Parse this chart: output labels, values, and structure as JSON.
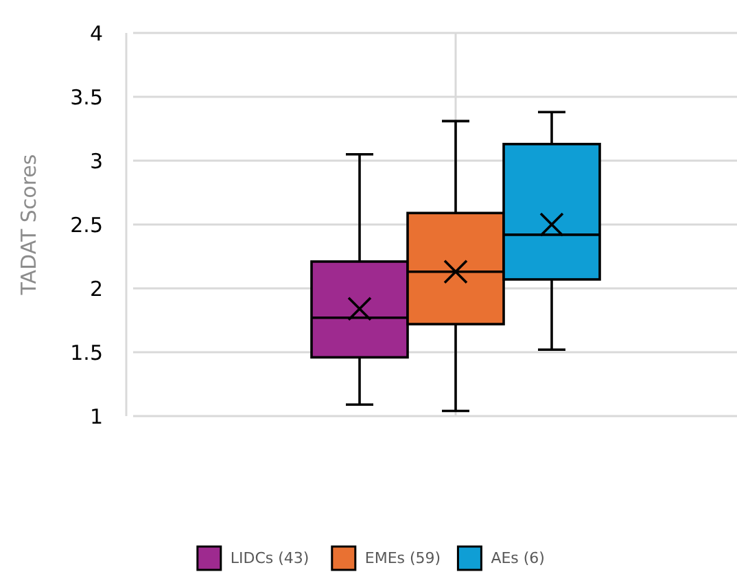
{
  "chart_data": {
    "type": "box",
    "ylabel": "TADAT Scores",
    "categories": [
      null
    ],
    "ylim": [
      1,
      4
    ],
    "yticks": [
      1,
      1.5,
      2,
      2.5,
      3,
      3.5,
      4
    ],
    "grid": true,
    "legend": "bottom",
    "marker": "cross",
    "series": [
      {
        "name": "LIDCs (43)",
        "color": "#9e2a8f",
        "boxes": [
          {
            "low": 1.09,
            "q1": 1.46,
            "median": 1.77,
            "q3": 2.21,
            "high": 3.05,
            "mean": 1.84
          }
        ]
      },
      {
        "name": "EMEs (59)",
        "color": "#e97132",
        "boxes": [
          {
            "low": 1.04,
            "q1": 1.72,
            "median": 2.13,
            "q3": 2.59,
            "high": 3.31,
            "mean": 2.13
          }
        ]
      },
      {
        "name": "AEs (6)",
        "color": "#0f9ed5",
        "boxes": [
          {
            "low": 1.52,
            "q1": 2.07,
            "median": 2.42,
            "q3": 3.13,
            "high": 3.38,
            "mean": 2.5
          }
        ]
      }
    ]
  }
}
